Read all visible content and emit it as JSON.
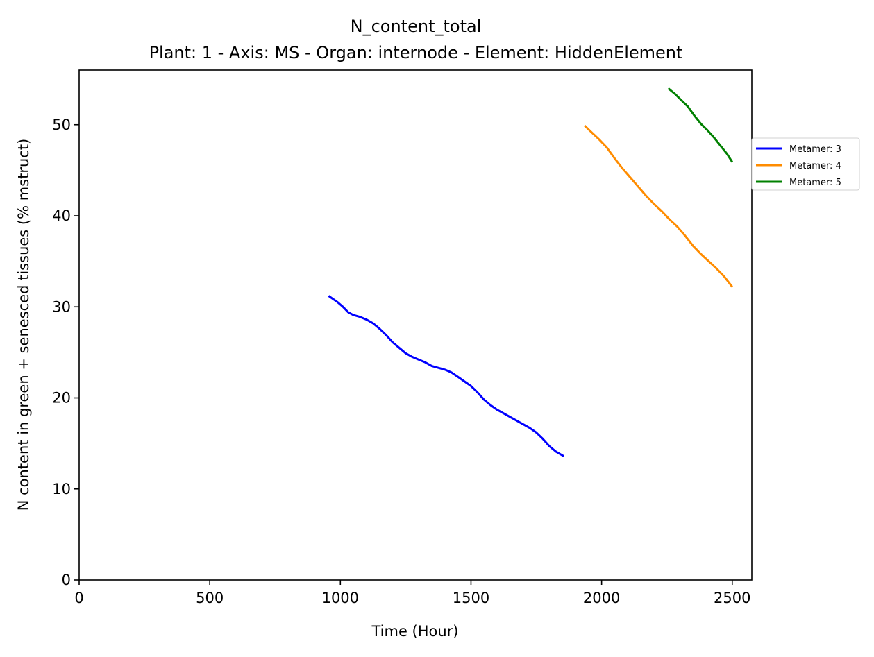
{
  "chart_data": {
    "type": "line",
    "title": "N_content_total",
    "subtitle": "Plant: 1 - Axis: MS - Organ: internode - Element: HiddenElement",
    "xlabel": "Time (Hour)",
    "ylabel": "N content in green + senesced tissues (% mstruct)",
    "xlim": [
      0,
      2575
    ],
    "ylim": [
      0,
      56
    ],
    "x_ticks": [
      0,
      500,
      1000,
      1500,
      2000,
      2500
    ],
    "y_ticks": [
      0,
      10,
      20,
      30,
      40,
      50
    ],
    "grid": false,
    "legend_position": "right, outside plot area, near top",
    "series": [
      {
        "name": "Metamer: 3",
        "color": "#0000ff",
        "x": [
          955,
          990,
          1010,
          1030,
          1050,
          1075,
          1100,
          1125,
          1150,
          1175,
          1200,
          1225,
          1250,
          1275,
          1300,
          1325,
          1350,
          1375,
          1400,
          1425,
          1450,
          1475,
          1500,
          1525,
          1550,
          1575,
          1600,
          1625,
          1650,
          1675,
          1700,
          1725,
          1750,
          1775,
          1800,
          1825,
          1855
        ],
        "y": [
          31.2,
          30.5,
          30.0,
          29.4,
          29.1,
          28.9,
          28.6,
          28.2,
          27.6,
          26.9,
          26.1,
          25.5,
          24.9,
          24.5,
          24.2,
          23.9,
          23.5,
          23.3,
          23.1,
          22.8,
          22.3,
          21.8,
          21.3,
          20.6,
          19.8,
          19.2,
          18.7,
          18.3,
          17.9,
          17.5,
          17.1,
          16.7,
          16.2,
          15.5,
          14.7,
          14.1,
          13.6
        ]
      },
      {
        "name": "Metamer: 4",
        "color": "#ff8c00",
        "x": [
          1935,
          1960,
          1990,
          2020,
          2050,
          2080,
          2110,
          2140,
          2170,
          2200,
          2230,
          2260,
          2290,
          2320,
          2350,
          2380,
          2410,
          2440,
          2470,
          2500
        ],
        "y": [
          49.9,
          49.2,
          48.4,
          47.5,
          46.3,
          45.2,
          44.2,
          43.2,
          42.2,
          41.3,
          40.5,
          39.6,
          38.8,
          37.8,
          36.7,
          35.8,
          35.0,
          34.2,
          33.3,
          32.2
        ]
      },
      {
        "name": "Metamer: 5",
        "color": "#008000",
        "x": [
          2255,
          2280,
          2305,
          2330,
          2355,
          2380,
          2405,
          2430,
          2455,
          2480,
          2500
        ],
        "y": [
          54.0,
          53.4,
          52.7,
          52.0,
          51.0,
          50.1,
          49.4,
          48.6,
          47.7,
          46.8,
          45.9
        ]
      }
    ]
  }
}
